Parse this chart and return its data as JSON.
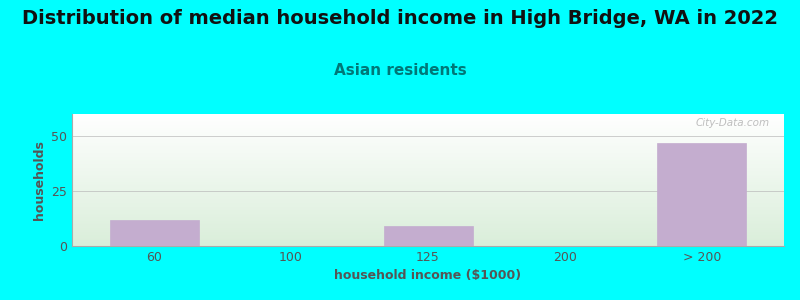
{
  "title": "Distribution of median household income in High Bridge, WA in 2022",
  "subtitle": "Asian residents",
  "xlabel": "household income ($1000)",
  "ylabel": "households",
  "background_color": "#00FFFF",
  "plot_bg_top": "#FFFFFF",
  "plot_bg_bottom": "#DAEEDA",
  "bar_color": "#C4ADCF",
  "bar_edge_color": "#C4ADCF",
  "categories": [
    "60",
    "100",
    "125",
    "200",
    "> 200"
  ],
  "values": [
    12,
    0,
    9,
    0,
    47
  ],
  "ylim": [
    0,
    60
  ],
  "yticks": [
    0,
    25,
    50
  ],
  "title_fontsize": 14,
  "subtitle_fontsize": 11,
  "axis_label_fontsize": 9,
  "tick_fontsize": 9,
  "title_color": "#111111",
  "subtitle_color": "#007777",
  "axis_label_color": "#555555",
  "tick_color": "#555555",
  "watermark": "City-Data.com",
  "grid_color": "#bbbbbb"
}
